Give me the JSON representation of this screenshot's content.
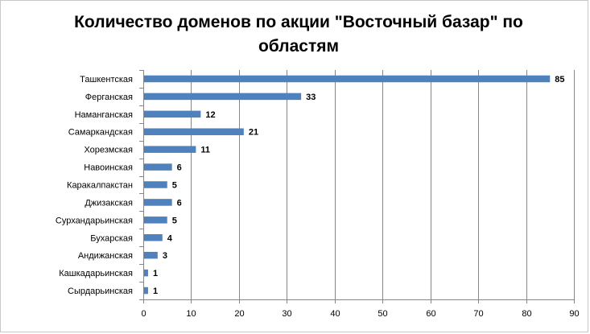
{
  "chart_data": {
    "type": "bar",
    "orientation": "horizontal",
    "title": "Количество доменов по акции \"Восточный базар\" по областям",
    "xlabel": "",
    "ylabel": "",
    "categories": [
      "Ташкентская",
      "Ферганская",
      "Наманганская",
      "Самаркандская",
      "Хорезмская",
      "Навоинская",
      "Каракалпакстан",
      "Джизакская",
      "Сурхандарьинская",
      "Бухарская",
      "Андижанская",
      "Кашкадарьинская",
      "Сырдарьинская"
    ],
    "values": [
      85,
      33,
      12,
      21,
      11,
      6,
      5,
      6,
      5,
      4,
      3,
      1,
      1
    ],
    "xlim": [
      0,
      90
    ],
    "xticks": [
      0,
      10,
      20,
      30,
      40,
      50,
      60,
      70,
      80,
      90
    ],
    "grid": "vertical",
    "legend": "none",
    "data_labels": true,
    "bar_color": "#4f81bd",
    "grid_color": "#868686"
  }
}
